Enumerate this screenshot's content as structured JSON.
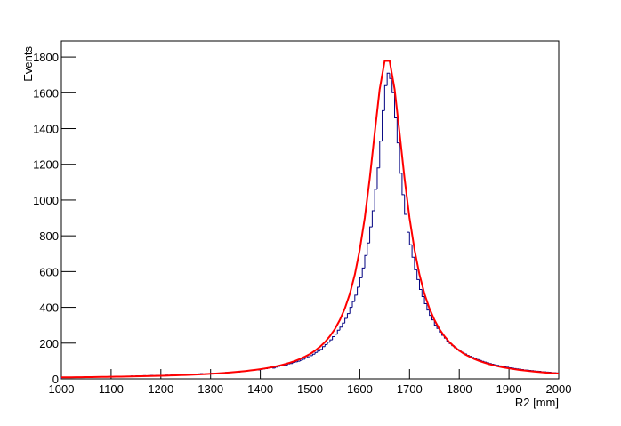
{
  "chart_data": {
    "type": "histogram",
    "x_label": "R2 [mm]",
    "y_label": "Events",
    "color": "#000080",
    "bins": [
      1000,
      1005,
      1010,
      1015,
      1020,
      1025,
      1030,
      1035,
      1040,
      1045,
      1050,
      1055,
      1060,
      1065,
      1070,
      1075,
      1080,
      1085,
      1090,
      1095,
      1100,
      1105,
      1110,
      1115,
      1120,
      1125,
      1130,
      1135,
      1140,
      1145,
      1150,
      1155,
      1160,
      1165,
      1170,
      1175,
      1180,
      1185,
      1190,
      1195,
      1200,
      1205,
      1210,
      1215,
      1220,
      1225,
      1230,
      1235,
      1240,
      1245,
      1250,
      1255,
      1260,
      1265,
      1270,
      1275,
      1280,
      1285,
      1290,
      1295,
      1300,
      1305,
      1310,
      1315,
      1320,
      1325,
      1330,
      1335,
      1340,
      1345,
      1350,
      1355,
      1360,
      1365,
      1370,
      1375,
      1380,
      1385,
      1390,
      1395,
      1400,
      1405,
      1410,
      1415,
      1420,
      1425,
      1430,
      1435,
      1440,
      1445,
      1450,
      1455,
      1460,
      1465,
      1470,
      1475,
      1480,
      1485,
      1490,
      1495,
      1500,
      1505,
      1510,
      1515,
      1520,
      1525,
      1530,
      1535,
      1540,
      1545,
      1550,
      1555,
      1560,
      1565,
      1570,
      1575,
      1580,
      1585,
      1590,
      1595,
      1600,
      1605,
      1610,
      1615,
      1620,
      1625,
      1630,
      1635,
      1640,
      1645,
      1650,
      1655,
      1660,
      1665,
      1670,
      1675,
      1680,
      1685,
      1690,
      1695,
      1700,
      1705,
      1710,
      1715,
      1720,
      1725,
      1730,
      1735,
      1740,
      1745,
      1750,
      1755,
      1760,
      1765,
      1770,
      1775,
      1780,
      1785,
      1790,
      1795,
      1800,
      1805,
      1810,
      1815,
      1820,
      1825,
      1830,
      1835,
      1840,
      1845,
      1850,
      1855,
      1860,
      1865,
      1870,
      1875,
      1880,
      1885,
      1890,
      1895,
      1900,
      1905,
      1910,
      1915,
      1920,
      1925,
      1930,
      1935,
      1940,
      1945,
      1950,
      1955,
      1960,
      1965,
      1970,
      1975,
      1980,
      1985,
      1990,
      1995,
      2000
    ],
    "values": [
      8,
      9,
      9,
      9,
      10,
      9,
      9,
      10,
      10,
      11,
      10,
      11,
      11,
      10,
      12,
      11,
      11,
      12,
      12,
      13,
      12,
      13,
      14,
      13,
      14,
      15,
      15,
      14,
      16,
      15,
      17,
      16,
      16,
      18,
      17,
      18,
      19,
      18,
      19,
      20,
      18,
      20,
      21,
      19,
      22,
      21,
      23,
      22,
      23,
      25,
      24,
      26,
      27,
      25,
      26,
      28,
      29,
      27,
      30,
      29,
      31,
      30,
      32,
      31,
      33,
      35,
      36,
      34,
      37,
      39,
      40,
      38,
      41,
      43,
      44,
      46,
      47,
      49,
      51,
      50,
      53,
      56,
      57,
      61,
      63,
      60,
      66,
      70,
      72,
      76,
      78,
      84,
      86,
      92,
      95,
      99,
      104,
      110,
      118,
      124,
      130,
      138,
      148,
      156,
      165,
      180,
      192,
      205,
      218,
      236,
      250,
      272,
      290,
      312,
      338,
      365,
      400,
      432,
      468,
      512,
      565,
      620,
      690,
      760,
      850,
      940,
      1060,
      1180,
      1330,
      1500,
      1640,
      1710,
      1680,
      1600,
      1460,
      1320,
      1150,
      1030,
      920,
      820,
      750,
      680,
      610,
      555,
      500,
      460,
      420,
      385,
      355,
      330,
      300,
      282,
      262,
      244,
      228,
      210,
      198,
      186,
      175,
      165,
      155,
      148,
      140,
      132,
      126,
      120,
      114,
      108,
      103,
      98,
      94,
      90,
      86,
      82,
      79,
      76,
      73,
      70,
      68,
      65,
      62,
      60,
      58,
      56,
      54,
      52,
      50,
      49,
      47,
      46,
      44,
      43,
      42,
      40,
      39,
      38,
      37,
      35,
      34,
      33
    ],
    "fit": {
      "color": "#ff0000",
      "x": [
        1000,
        1010,
        1020,
        1030,
        1040,
        1050,
        1060,
        1070,
        1080,
        1090,
        1100,
        1110,
        1120,
        1130,
        1140,
        1150,
        1160,
        1170,
        1180,
        1190,
        1200,
        1210,
        1220,
        1230,
        1240,
        1250,
        1260,
        1270,
        1280,
        1290,
        1300,
        1310,
        1320,
        1330,
        1340,
        1350,
        1360,
        1370,
        1380,
        1390,
        1400,
        1410,
        1420,
        1430,
        1440,
        1450,
        1460,
        1470,
        1480,
        1490,
        1500,
        1510,
        1520,
        1530,
        1540,
        1550,
        1560,
        1570,
        1580,
        1590,
        1600,
        1610,
        1620,
        1630,
        1640,
        1650,
        1660,
        1670,
        1680,
        1690,
        1700,
        1710,
        1720,
        1730,
        1740,
        1750,
        1760,
        1770,
        1780,
        1790,
        1800,
        1810,
        1820,
        1830,
        1840,
        1850,
        1860,
        1870,
        1880,
        1890,
        1900,
        1910,
        1920,
        1930,
        1940,
        1950,
        1960,
        1970,
        1980,
        1990,
        2000
      ],
      "values": [
        8.5,
        8.7,
        9.0,
        9.3,
        9.6,
        9.9,
        10.2,
        10.6,
        11.0,
        11.3,
        11.8,
        12.2,
        12.6,
        13.1,
        13.6,
        14.2,
        14.8,
        15.4,
        16.0,
        16.7,
        17.4,
        18.2,
        19.1,
        20.0,
        20.9,
        22.0,
        23.1,
        24.3,
        25.6,
        27.0,
        28.5,
        30.1,
        31.9,
        33.8,
        36.0,
        38.4,
        40.9,
        43.8,
        47.0,
        50.4,
        54.4,
        58.8,
        63.6,
        69.2,
        75.6,
        82.6,
        90.9,
        100.6,
        111.8,
        125,
        139.5,
        158,
        180,
        206,
        239,
        279,
        330,
        394,
        476,
        583,
        723,
        900,
        1121,
        1375,
        1620,
        1778,
        1778,
        1620,
        1375,
        1121,
        900,
        723,
        583,
        476,
        394,
        330,
        279,
        239,
        206,
        180,
        158,
        139.5,
        125,
        111.8,
        100.6,
        90.9,
        82.6,
        75.6,
        69.2,
        63.6,
        58.8,
        54.4,
        50.4,
        47.0,
        43.8,
        40.9,
        38.4,
        36.0,
        33.8,
        31.9,
        30.1
      ]
    },
    "xlim": [
      1000,
      2000
    ],
    "ylim": [
      0,
      1890
    ],
    "xticks": [
      1000,
      1100,
      1200,
      1300,
      1400,
      1500,
      1600,
      1700,
      1800,
      1900,
      2000
    ],
    "yticks": [
      0,
      200,
      400,
      600,
      800,
      1000,
      1200,
      1400,
      1600,
      1800
    ]
  }
}
